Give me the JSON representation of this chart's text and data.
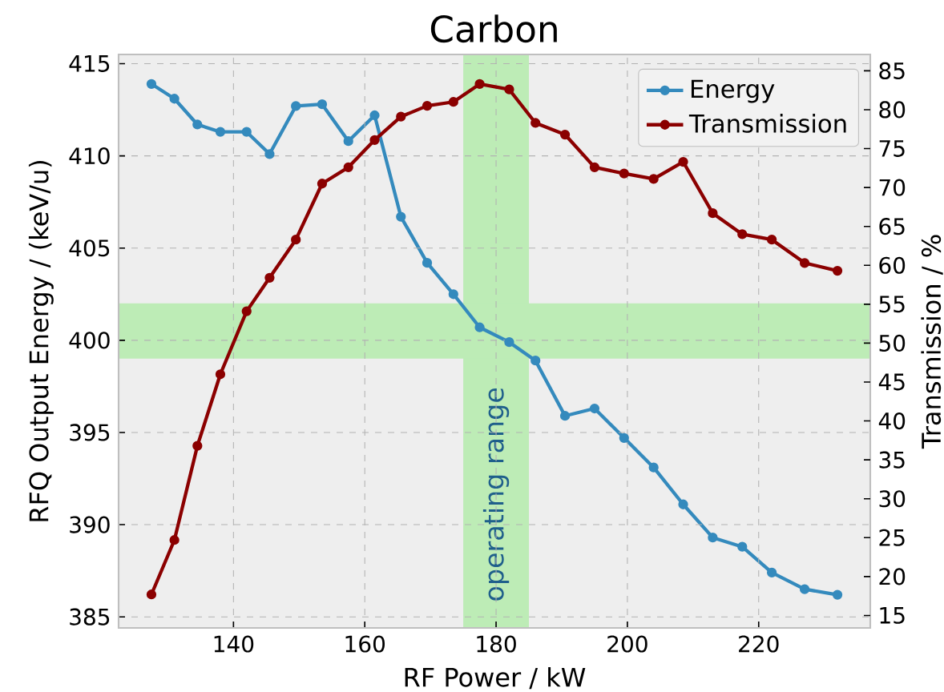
{
  "chart_data": {
    "type": "line",
    "title": "Carbon",
    "xlabel": "RF Power / kW",
    "ylabel": "RFQ Output Energy / (keV/u)",
    "y2label": "Transmission / %",
    "x": [
      127.5,
      131,
      134.5,
      138,
      142,
      145.5,
      149.5,
      153.5,
      157.5,
      161.5,
      165.5,
      169.5,
      173.5,
      177.5,
      182,
      186,
      190.5,
      195,
      199.5,
      204,
      208.5,
      213,
      217.5,
      222,
      227,
      232
    ],
    "series": [
      {
        "name": "Energy",
        "color": "#348abd",
        "values": [
          413.9,
          413.1,
          411.7,
          411.3,
          411.3,
          410.1,
          412.7,
          412.8,
          410.8,
          412.2,
          406.7,
          404.2,
          402.5,
          400.7,
          399.9,
          398.9,
          395.9,
          396.3,
          394.7,
          393.1,
          391.1,
          389.3,
          388.8,
          387.4,
          386.5,
          386.2
        ]
      },
      {
        "name": "Transmission",
        "color": "#8b0000",
        "axis": "y2",
        "values": [
          17.7,
          24.7,
          36.8,
          46.0,
          54.1,
          58.4,
          63.3,
          70.5,
          72.6,
          76.1,
          79.1,
          80.5,
          81.0,
          83.3,
          82.6,
          78.3,
          76.8,
          72.6,
          71.8,
          71.1,
          73.3,
          66.7,
          64.0,
          63.3,
          60.3,
          59.3
        ]
      }
    ],
    "xlim": [
      122.5,
      237
    ],
    "xticks": [
      140,
      160,
      180,
      200,
      220
    ],
    "ylim": [
      384.4,
      415.5
    ],
    "yticks": [
      385,
      390,
      395,
      400,
      405,
      410,
      415
    ],
    "y2lim": [
      13.4,
      87.1
    ],
    "y2ticks": [
      15,
      20,
      25,
      30,
      35,
      40,
      45,
      50,
      55,
      60,
      65,
      70,
      75,
      80,
      85
    ],
    "bands": [
      {
        "axis": "x",
        "from": 175,
        "to": 185,
        "label": "operating range",
        "color": "#bdecb6"
      },
      {
        "axis": "y",
        "from": 399,
        "to": 402,
        "color": "#bdecb6"
      }
    ],
    "grid": true,
    "legend": "top right",
    "marker": "circle",
    "line_style": "solid"
  }
}
